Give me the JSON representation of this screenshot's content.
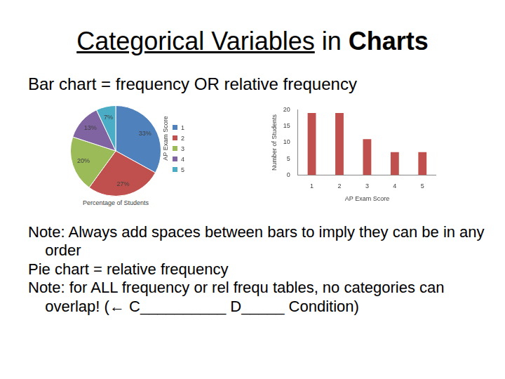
{
  "title_parts": [
    {
      "text": "Categorical Variables",
      "style": "underline"
    },
    {
      "text": " in ",
      "style": "normal"
    },
    {
      "text": "Charts",
      "style": "bold"
    }
  ],
  "subtitle": "Bar chart = frequency OR relative frequency",
  "chart_data": [
    {
      "type": "pie",
      "categories": [
        "1",
        "2",
        "3",
        "4",
        "5"
      ],
      "values": [
        33,
        27,
        20,
        13,
        7
      ],
      "value_labels": [
        "33%",
        "27%",
        "20%",
        "13%",
        "7%"
      ],
      "data_labels": true,
      "colors": [
        "#4f81bd",
        "#c0504d",
        "#9bbb59",
        "#8064a2",
        "#4bacc6"
      ],
      "legend": "right",
      "legend_title": "AP Exam Score",
      "caption": "Percentage of Students"
    },
    {
      "type": "bar",
      "categories": [
        "1",
        "2",
        "3",
        "4",
        "5"
      ],
      "values": [
        19,
        19,
        11,
        7,
        7
      ],
      "color": "#c0504d",
      "xlabel": "AP Exam Score",
      "ylabel": "Number of Students",
      "ylim": [
        0,
        20
      ],
      "yticks": [
        0,
        5,
        10,
        15,
        20
      ],
      "grid": false
    }
  ],
  "notes": [
    "Note: Always add spaces between bars to imply they can be in any order",
    "Pie chart = relative frequency",
    "Note: for ALL frequency or rel frequ tables, no categories can overlap! (← C__________ D_____ Condition)"
  ]
}
